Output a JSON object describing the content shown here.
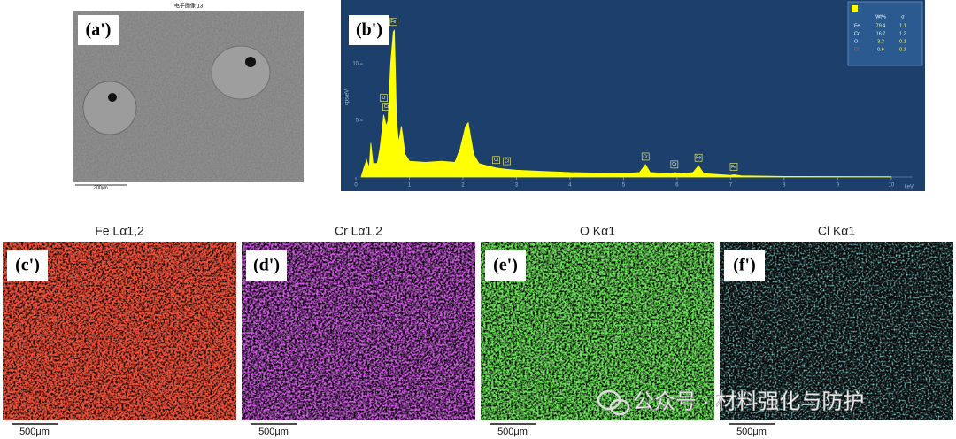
{
  "panel_a": {
    "label": "(a')",
    "title": "电子图像 13",
    "scale_bar": "300μm"
  },
  "chart_data": {
    "type": "area",
    "label": "(b')",
    "color": "#ffff00",
    "x": [
      0.1,
      0.15,
      0.2,
      0.25,
      0.28,
      0.32,
      0.4,
      0.45,
      0.5,
      0.52,
      0.57,
      0.6,
      0.65,
      0.7,
      0.72,
      0.76,
      0.8,
      0.85,
      0.88,
      0.92,
      1.0,
      1.3,
      1.6,
      1.85,
      1.95,
      2.05,
      2.1,
      2.2,
      2.3,
      2.45,
      2.62,
      2.8,
      3.0,
      3.5,
      4.0,
      4.5,
      5.0,
      5.3,
      5.41,
      5.5,
      5.9,
      5.95,
      6.1,
      6.3,
      6.4,
      6.5,
      7.0,
      7.06,
      7.2,
      8.0,
      10.0
    ],
    "values": [
      0,
      0.8,
      1.5,
      0.8,
      3,
      1.2,
      1.2,
      2.5,
      4.5,
      5.5,
      4.5,
      5,
      10,
      12.8,
      13,
      5,
      3,
      4.5,
      3.5,
      2,
      1.4,
      1.3,
      1.4,
      1.3,
      2.5,
      4.5,
      4.8,
      2,
      1.2,
      1.0,
      0.8,
      0.7,
      0.6,
      0.5,
      0.4,
      0.35,
      0.3,
      0.4,
      1.1,
      0.4,
      0.3,
      0.4,
      0.3,
      0.4,
      1.0,
      0.3,
      0.15,
      0.2,
      0.1,
      0.05,
      0.03
    ],
    "xlim": [
      0,
      10.4
    ],
    "ylim": [
      0,
      14
    ],
    "xticks": [
      0,
      1,
      2,
      3,
      4,
      5,
      6,
      7,
      8,
      9,
      10
    ],
    "yticks": [
      5,
      10
    ],
    "xlabel": "keV",
    "ylabel": "cps/eV",
    "peaks": [
      {
        "label": "O",
        "x": 0.52
      },
      {
        "label": "Cr",
        "x": 0.57
      },
      {
        "label": "Fe",
        "x": 0.7
      },
      {
        "label": "Cl",
        "x": 2.62
      },
      {
        "label": "Cl",
        "x": 2.82
      },
      {
        "label": "Cr",
        "x": 5.41
      },
      {
        "label": "Cr",
        "x": 5.95
      },
      {
        "label": "Fe",
        "x": 6.4
      },
      {
        "label": "Fe",
        "x": 7.06
      }
    ],
    "legend": {
      "columns": [
        "Wt%",
        "σ"
      ],
      "rows": [
        [
          "Fe",
          79.4,
          1.1
        ],
        [
          "Cr",
          16.7,
          1.2
        ],
        [
          "O",
          3.3,
          0.1
        ],
        [
          "Cl",
          0.6,
          0.1
        ]
      ]
    }
  },
  "maps": [
    {
      "title": "Fe Lα1,2",
      "label": "(c')",
      "scale_bar": "500μm"
    },
    {
      "title": "Cr Lα1,2",
      "label": "(d')",
      "scale_bar": "500μm"
    },
    {
      "title": "O Kα1",
      "label": "(e')",
      "scale_bar": "500μm"
    },
    {
      "title": "Cl Kα1",
      "label": "(f')",
      "scale_bar": "500μm"
    }
  ],
  "watermark": "公众号 · 材料强化与防护"
}
